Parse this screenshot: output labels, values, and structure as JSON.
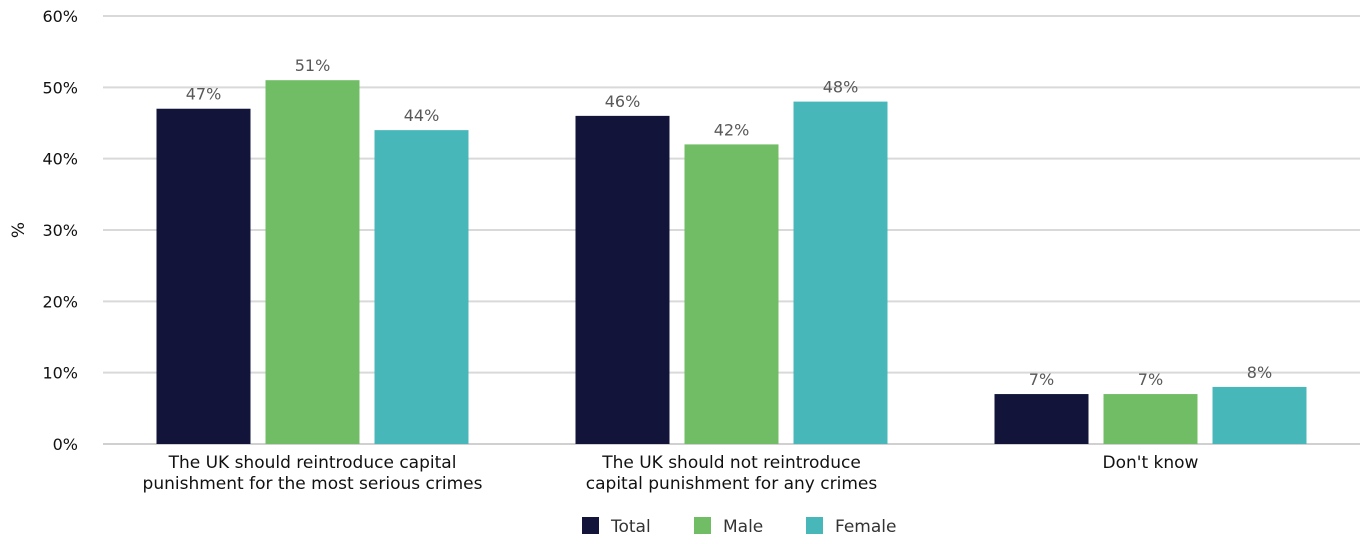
{
  "chart_data": {
    "type": "bar",
    "title": "",
    "xlabel": "",
    "ylabel": "%",
    "ylim": [
      0,
      60
    ],
    "yticks": [
      0,
      10,
      20,
      30,
      40,
      50,
      60
    ],
    "ytick_labels": [
      "0%",
      "10%",
      "20%",
      "30%",
      "40%",
      "50%",
      "60%"
    ],
    "grid": true,
    "legend_position": "bottom",
    "categories": [
      [
        "The UK should reintroduce capital",
        "punishment for the most serious crimes"
      ],
      [
        "The UK should not reintroduce",
        "capital punishment for any crimes"
      ],
      [
        "Don't know"
      ]
    ],
    "series": [
      {
        "name": "Total",
        "color": "#12143a",
        "values": [
          47,
          46,
          7
        ]
      },
      {
        "name": "Male",
        "color": "#70bd65",
        "values": [
          51,
          42,
          7
        ]
      },
      {
        "name": "Female",
        "color": "#48b7ba",
        "values": [
          44,
          48,
          8
        ]
      }
    ],
    "data_labels": [
      [
        "47%",
        "46%",
        "7%"
      ],
      [
        "51%",
        "42%",
        "7%"
      ],
      [
        "44%",
        "48%",
        "8%"
      ]
    ]
  }
}
